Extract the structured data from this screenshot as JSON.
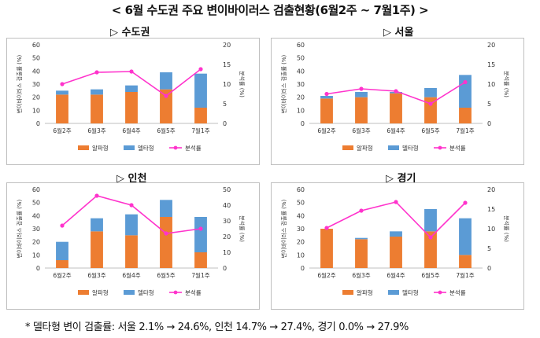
{
  "title": "< 6월 수도권 주요 변이바이러스 검출현황(6월2주 ~ 7월1주) >",
  "footnote": "* 델타형 변이 검출률: 서울 2.1% → 24.6%, 인천 14.7% → 27.4%, 경기 0.0% → 27.9%",
  "colors": {
    "alpha": "#ED7D31",
    "delta": "#5B9BD5",
    "rate": "#FF33CC"
  },
  "chart_data": [
    {
      "type": "bar",
      "panel_title": "▷ 수도권",
      "categories": [
        "6월2주",
        "6월3주",
        "6월4주",
        "6월5주",
        "7월1주"
      ],
      "series": [
        {
          "name": "알파형",
          "values": [
            22,
            22,
            24,
            26,
            12
          ]
        },
        {
          "name": "델타형",
          "values": [
            3,
            4,
            5,
            13,
            26
          ]
        },
        {
          "name": "분석률",
          "values": [
            10,
            13,
            13.2,
            7,
            13.8
          ],
          "axis": "right"
        }
      ],
      "ylabel": "변이바이러스 검출률 (%)",
      "y2label": "분석률 (%)",
      "ylim": [
        0,
        60
      ],
      "y2lim": [
        0,
        20
      ],
      "yticks": [
        0,
        10,
        20,
        30,
        40,
        50,
        60
      ],
      "y2ticks": [
        0,
        5,
        10,
        15,
        20
      ],
      "legend": [
        "알파형",
        "델타형",
        "분석률"
      ]
    },
    {
      "type": "bar",
      "panel_title": "▷ 서울",
      "categories": [
        "6월2주",
        "6월3주",
        "6월4주",
        "6월5주",
        "7월1주"
      ],
      "series": [
        {
          "name": "알파형",
          "values": [
            19,
            20,
            23,
            20,
            12
          ]
        },
        {
          "name": "델타형",
          "values": [
            2,
            4,
            1,
            7,
            25
          ]
        },
        {
          "name": "분석률",
          "values": [
            7.5,
            8.8,
            8.2,
            5,
            10.5
          ],
          "axis": "right"
        }
      ],
      "ylabel": "변이바이러스 검출률 (%)",
      "y2label": "분석률 (%)",
      "ylim": [
        0,
        60
      ],
      "y2lim": [
        0,
        20
      ],
      "yticks": [
        0,
        10,
        20,
        30,
        40,
        50,
        60
      ],
      "y2ticks": [
        0,
        5,
        10,
        15,
        20
      ],
      "legend": [
        "알파형",
        "델타형",
        "분석률"
      ]
    },
    {
      "type": "bar",
      "panel_title": "▷ 인천",
      "categories": [
        "6월2주",
        "6월3주",
        "6월4주",
        "6월5주",
        "7월1주"
      ],
      "series": [
        {
          "name": "알파형",
          "values": [
            6,
            28,
            25,
            39,
            12
          ]
        },
        {
          "name": "델타형",
          "values": [
            14,
            10,
            16,
            13,
            27
          ]
        },
        {
          "name": "분석률",
          "values": [
            27,
            46,
            40,
            22,
            25
          ],
          "axis": "right"
        }
      ],
      "ylabel": "변이바이러스 검출률 (%)",
      "y2label": "분석률 (%)",
      "ylim": [
        0,
        60
      ],
      "y2lim": [
        0,
        50
      ],
      "yticks": [
        0,
        10,
        20,
        30,
        40,
        50,
        60
      ],
      "y2ticks": [
        0,
        10,
        20,
        30,
        40,
        50
      ],
      "legend": [
        "알파형",
        "델타형",
        "분석률"
      ]
    },
    {
      "type": "bar",
      "panel_title": "▷ 경기",
      "categories": [
        "6월2주",
        "6월3주",
        "6월4주",
        "6월5주",
        "7월1주"
      ],
      "series": [
        {
          "name": "알파형",
          "values": [
            30,
            22,
            24,
            28,
            10
          ]
        },
        {
          "name": "델타형",
          "values": [
            0,
            1,
            4,
            17,
            28
          ]
        },
        {
          "name": "분석률",
          "values": [
            10.2,
            14.6,
            16.8,
            7.8,
            16.6
          ],
          "axis": "right"
        }
      ],
      "ylabel": "변이바이러스 검출률 (%)",
      "y2label": "분석률 (%)",
      "ylim": [
        0,
        60
      ],
      "y2lim": [
        0,
        20
      ],
      "yticks": [
        0,
        10,
        20,
        30,
        40,
        50,
        60
      ],
      "y2ticks": [
        0,
        5,
        10,
        15,
        20
      ],
      "legend": [
        "알파형",
        "델타형",
        "분석률"
      ]
    }
  ]
}
